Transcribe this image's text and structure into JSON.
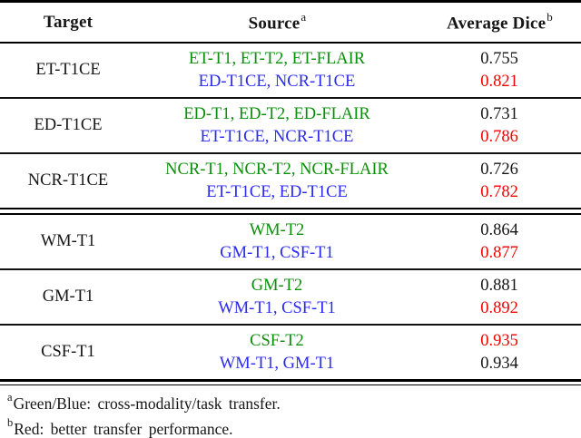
{
  "table": {
    "columns": [
      {
        "label": "Target",
        "sup": ""
      },
      {
        "label": "Source",
        "sup": "a"
      },
      {
        "label": "Average Dice",
        "sup": "b"
      }
    ],
    "rows": [
      {
        "target": "ET-T1CE",
        "source_green": "ET-T1, ET-T2, ET-FLAIR",
        "source_blue": "ED-T1CE, NCR-T1CE",
        "dice1": "0.755",
        "dice1_color": "black",
        "dice2": "0.821",
        "dice2_color": "red"
      },
      {
        "target": "ED-T1CE",
        "source_green": "ED-T1, ED-T2, ED-FLAIR",
        "source_blue": "ET-T1CE, NCR-T1CE",
        "dice1": "0.731",
        "dice1_color": "black",
        "dice2": "0.786",
        "dice2_color": "red"
      },
      {
        "target": "NCR-T1CE",
        "source_green": "NCR-T1, NCR-T2, NCR-FLAIR",
        "source_blue": "ET-T1CE, ED-T1CE",
        "dice1": "0.726",
        "dice1_color": "black",
        "dice2": "0.782",
        "dice2_color": "red"
      },
      {
        "target": "WM-T1",
        "source_green": "WM-T2",
        "source_blue": "GM-T1, CSF-T1",
        "dice1": "0.864",
        "dice1_color": "black",
        "dice2": "0.877",
        "dice2_color": "red"
      },
      {
        "target": "GM-T1",
        "source_green": "GM-T2",
        "source_blue": "WM-T1, CSF-T1",
        "dice1": "0.881",
        "dice1_color": "black",
        "dice2": "0.892",
        "dice2_color": "red"
      },
      {
        "target": "CSF-T1",
        "source_green": "CSF-T2",
        "source_blue": "WM-T1, GM-T1",
        "dice1": "0.935",
        "dice1_color": "red",
        "dice2": "0.934",
        "dice2_color": "black"
      }
    ],
    "footnotes": [
      {
        "sup": "a",
        "text": "Green/Blue: cross-modality/task transfer."
      },
      {
        "sup": "b",
        "text": "Red: better transfer performance."
      }
    ]
  },
  "colors": {
    "green": "#0a8f0a",
    "blue": "#2b2bf0",
    "red": "#f30000",
    "black": "#161616"
  }
}
